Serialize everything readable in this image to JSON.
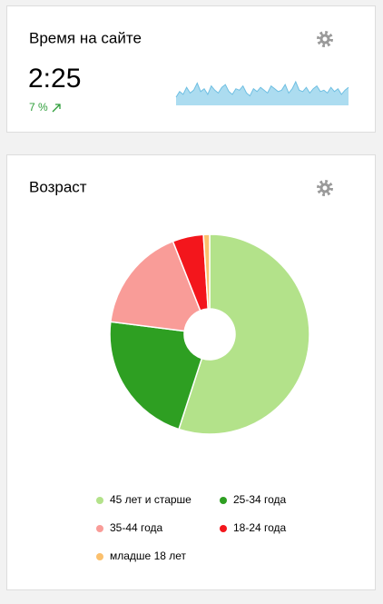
{
  "time_widget": {
    "title": "Время на сайте",
    "value": "2:25",
    "change": "7 %",
    "sparkline": [
      10,
      14,
      12,
      17,
      13,
      15,
      20,
      14,
      16,
      12,
      18,
      15,
      13,
      17,
      19,
      14,
      12,
      16,
      15,
      18,
      13,
      11,
      16,
      14,
      17,
      15,
      13,
      18,
      16,
      14,
      15,
      19,
      13,
      16,
      21,
      15,
      14,
      17,
      13,
      16,
      18,
      14,
      15,
      13,
      17,
      14,
      16,
      12,
      15,
      17
    ]
  },
  "chart_data": {
    "type": "pie",
    "title": "Возраст",
    "categories": [
      "45 лет и старше",
      "25-34 года",
      "35-44 года",
      "18-24 года",
      "младше 18 лет"
    ],
    "values": [
      55,
      22,
      17,
      5,
      1
    ],
    "colors": [
      "#b3e28a",
      "#2e9f22",
      "#f99c98",
      "#f3161c",
      "#fbc06d"
    ]
  }
}
